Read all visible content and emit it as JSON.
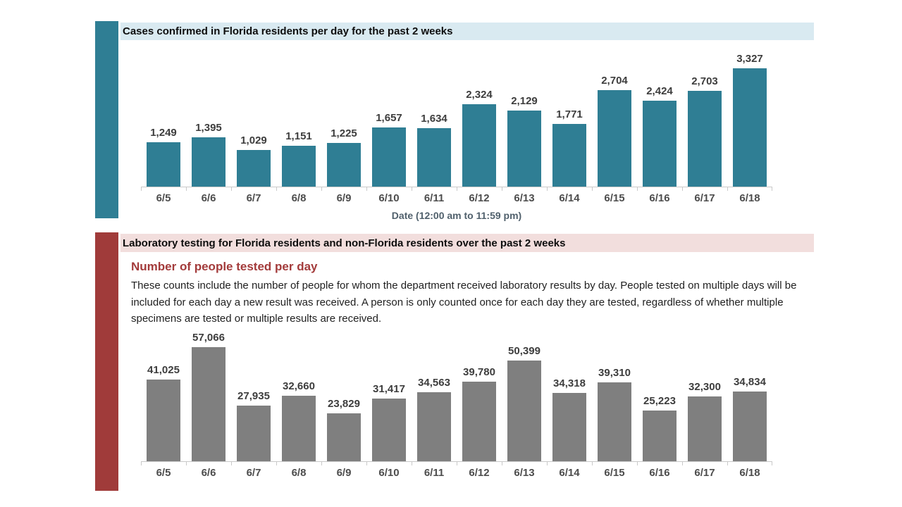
{
  "colors": {
    "teal_accent": "#2f7e94",
    "cases_header_bg": "#d9eaf1",
    "maroon_accent": "#a03b3a",
    "testing_header_bg": "#f2dedd",
    "testing_subtitle": "#a33b3b",
    "cases_bar": "#2f7e94",
    "testing_bar": "#7f7f7f",
    "value_label_text": "#3d3d3d",
    "category_label_text": "#4d4d4d",
    "axis_line": "#c9c9c9"
  },
  "sections": {
    "cases": {
      "header": "Cases confirmed in Florida residents per day for the past 2 weeks"
    },
    "testing": {
      "header": "Laboratory testing for Florida residents and non-Florida residents over the past 2 weeks",
      "subtitle": "Number of people tested per day",
      "description": "These counts include the number of people for whom the department received laboratory results by day. People tested on multiple days will be included for each day a new result was received. A person is only counted once for each day they are tested, regardless of whether multiple specimens are tested or multiple results are received."
    }
  },
  "chart_data": [
    {
      "id": "cases-confirmed-per-day",
      "type": "bar",
      "title": "Cases confirmed in Florida residents per day for the past 2 weeks",
      "categories": [
        "6/5",
        "6/6",
        "6/7",
        "6/8",
        "6/9",
        "6/10",
        "6/11",
        "6/12",
        "6/13",
        "6/14",
        "6/15",
        "6/16",
        "6/17",
        "6/18"
      ],
      "values": [
        1249,
        1395,
        1029,
        1151,
        1225,
        1657,
        1634,
        2324,
        2129,
        1771,
        2704,
        2424,
        2703,
        3327
      ],
      "data_labels": [
        "1,249",
        "1,395",
        "1,029",
        "1,151",
        "1,225",
        "1,657",
        "1,634",
        "2,324",
        "2,129",
        "1,771",
        "2,704",
        "2,424",
        "2,703",
        "3,327"
      ],
      "xlabel": "Date (12:00 am to 11:59 pm)",
      "ylabel": "",
      "ylim": [
        0,
        3500
      ],
      "bar_color": "#2f7e94",
      "grid": false,
      "legend": false
    },
    {
      "id": "people-tested-per-day",
      "type": "bar",
      "title": "Number of people tested per day",
      "categories": [
        "6/5",
        "6/6",
        "6/7",
        "6/8",
        "6/9",
        "6/10",
        "6/11",
        "6/12",
        "6/13",
        "6/14",
        "6/15",
        "6/16",
        "6/17",
        "6/18"
      ],
      "values": [
        41025,
        57066,
        27935,
        32660,
        23829,
        31417,
        34563,
        39780,
        50399,
        34318,
        39310,
        25223,
        32300,
        34834
      ],
      "data_labels": [
        "41,025",
        "57,066",
        "27,935",
        "32,660",
        "23,829",
        "31,417",
        "34,563",
        "39,780",
        "50,399",
        "34,318",
        "39,310",
        "25,223",
        "32,300",
        "34,834"
      ],
      "xlabel": "",
      "ylabel": "",
      "ylim": [
        0,
        60000
      ],
      "bar_color": "#7f7f7f",
      "grid": false,
      "legend": false
    }
  ]
}
